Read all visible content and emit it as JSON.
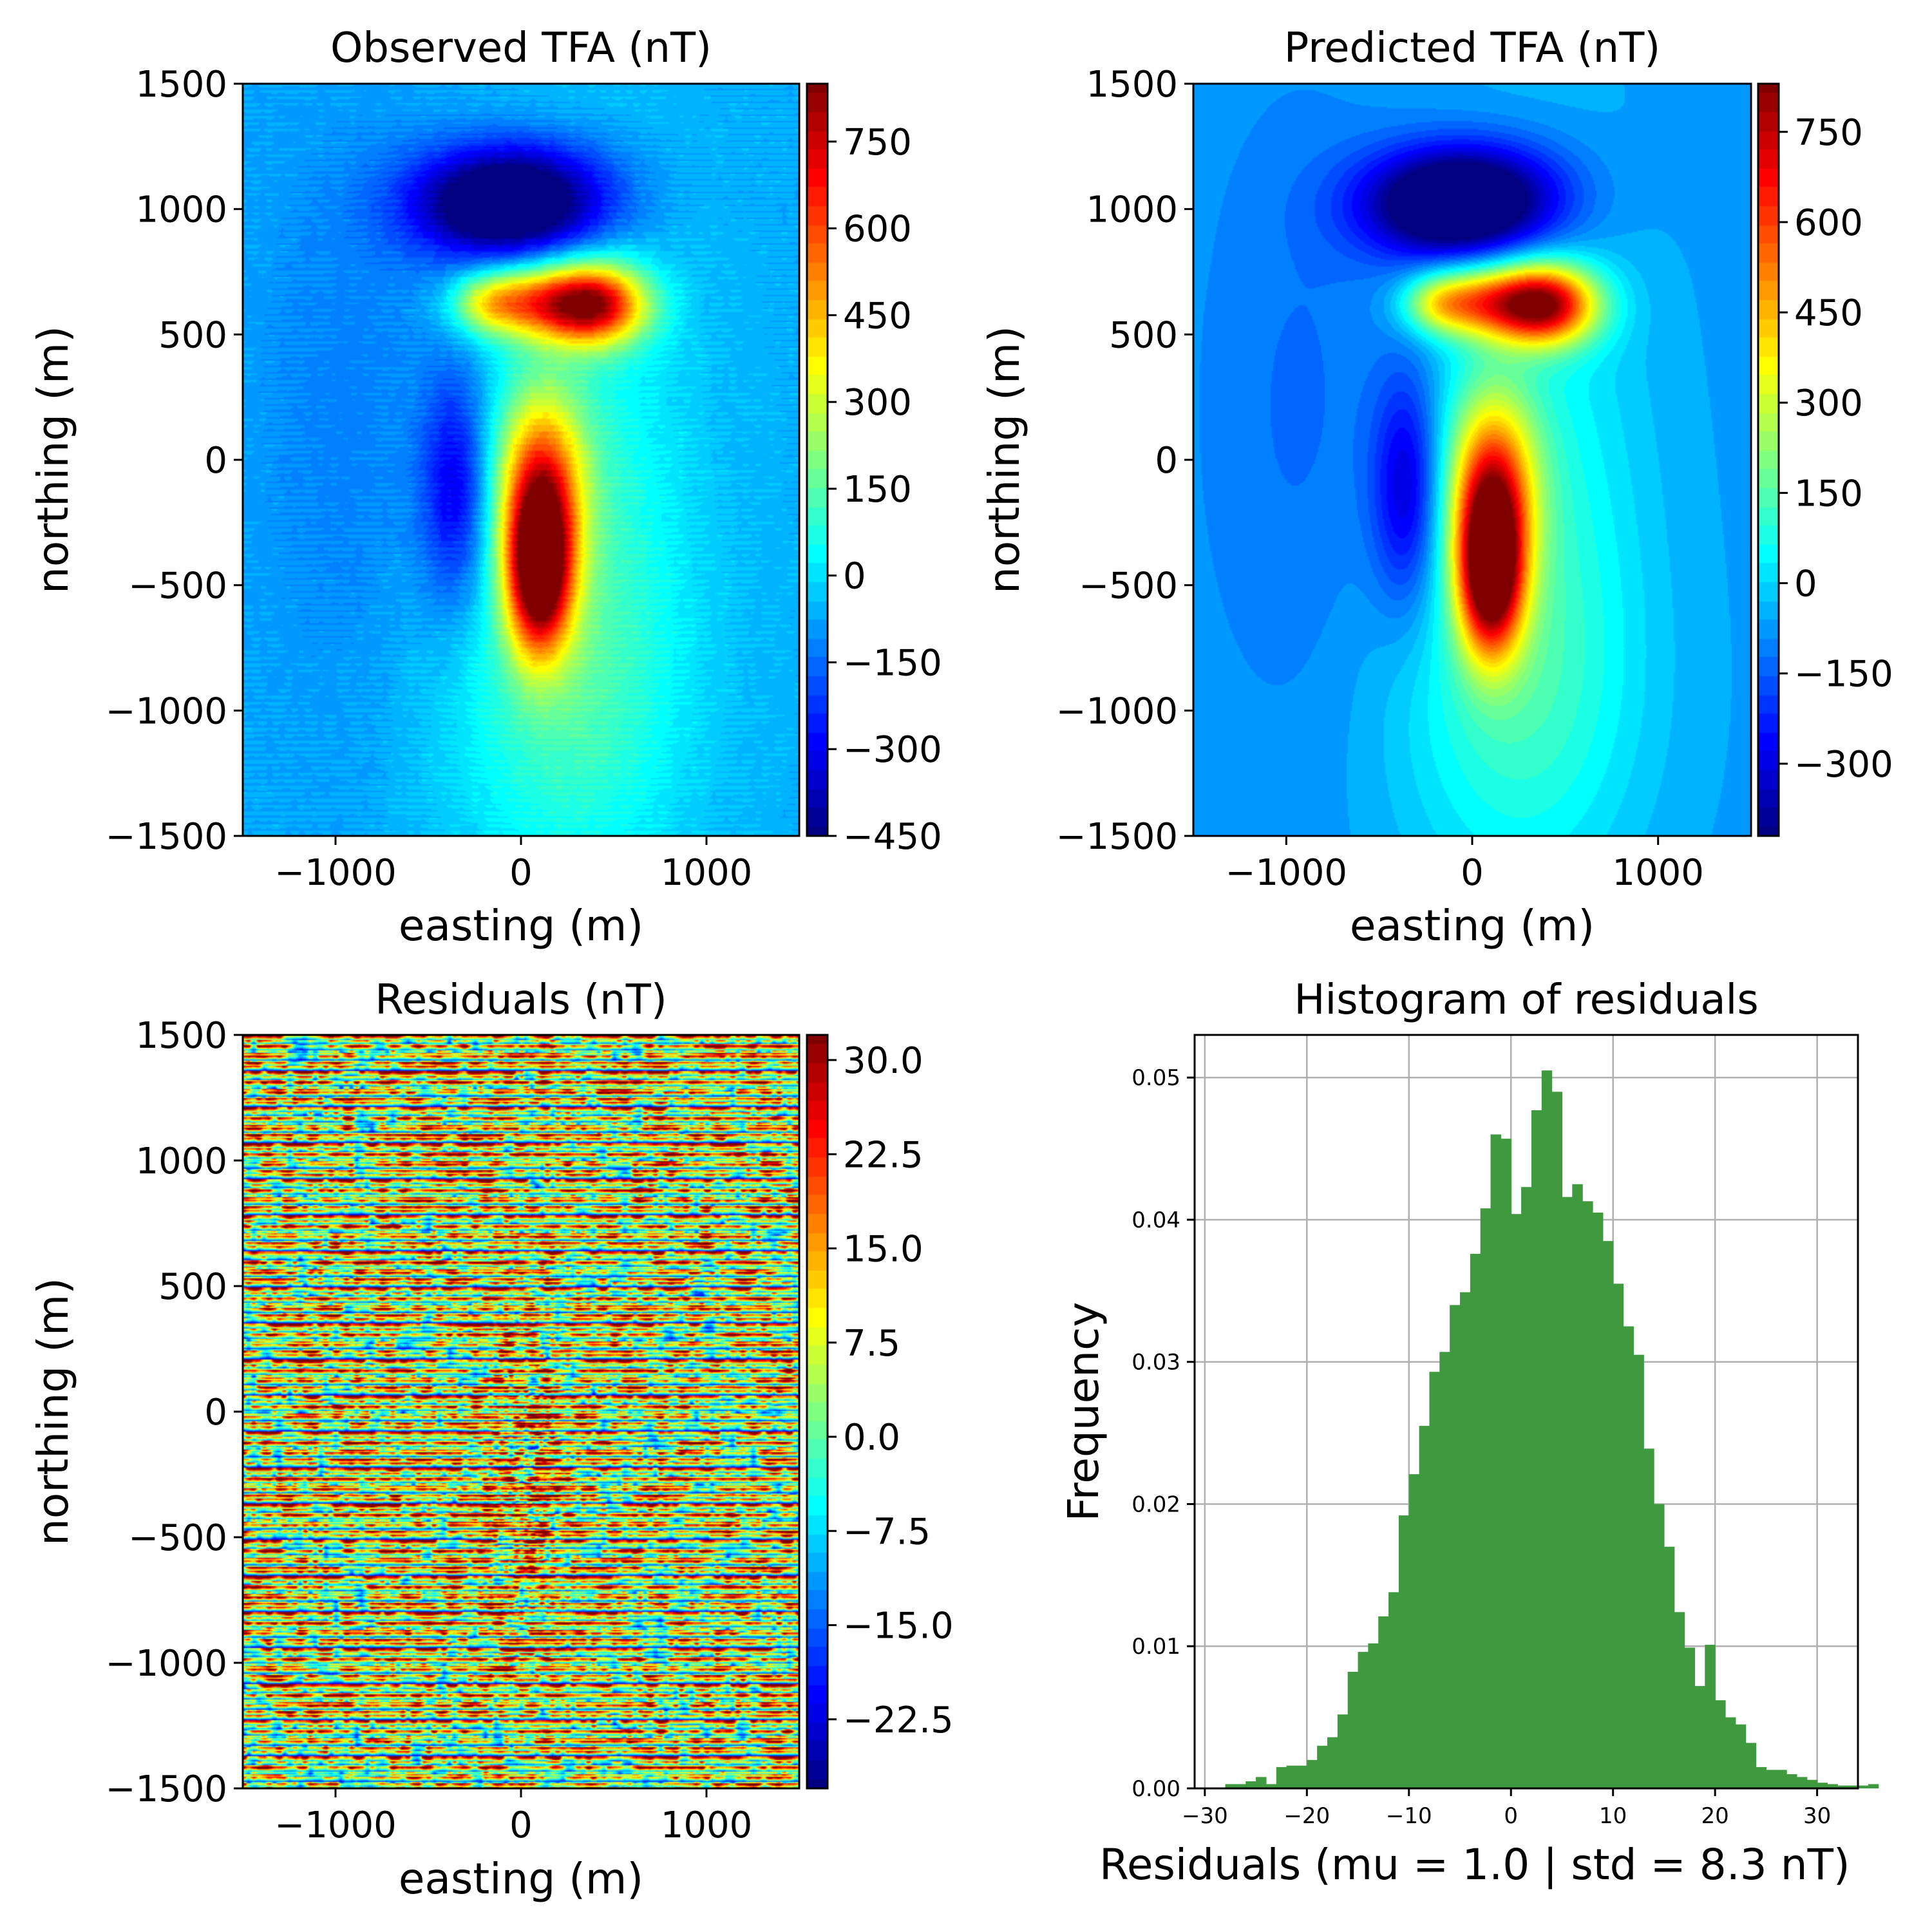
{
  "chart_data": [
    {
      "type": "heatmap",
      "title": "Observed TFA (nT)",
      "xlabel": "easting (m)",
      "ylabel": "northing (m)",
      "xlim": [
        -1500,
        1500
      ],
      "ylim": [
        -1500,
        1500
      ],
      "xticks": [
        -1000,
        0,
        1000
      ],
      "yticks": [
        -1500,
        -1000,
        -500,
        0,
        500,
        1000,
        1500
      ],
      "colormap": "jet",
      "colorbar": {
        "range": [
          -450,
          850
        ],
        "ticks": [
          -450,
          -300,
          -150,
          0,
          150,
          300,
          450,
          600,
          750
        ]
      },
      "anomalies": [
        {
          "x": 100,
          "y": -450,
          "value": 820,
          "shape": "elongated positive lobe"
        },
        {
          "x": 380,
          "y": 620,
          "value": 780,
          "shape": "elongated positive lobe"
        },
        {
          "x": -120,
          "y": 1020,
          "value": -420,
          "shape": "negative lobe"
        },
        {
          "x": -350,
          "y": -120,
          "value": -230,
          "shape": "negative lobe"
        }
      ]
    },
    {
      "type": "heatmap",
      "title": "Predicted TFA (nT)",
      "xlabel": "easting (m)",
      "ylabel": "northing (m)",
      "xlim": [
        -1500,
        1500
      ],
      "ylim": [
        -1500,
        1500
      ],
      "xticks": [
        -1000,
        0,
        1000
      ],
      "yticks": [
        -1500,
        -1000,
        -500,
        0,
        500,
        1000,
        1500
      ],
      "colormap": "jet",
      "colorbar": {
        "range": [
          -420,
          830
        ],
        "ticks": [
          -300,
          -150,
          0,
          150,
          300,
          450,
          600,
          750
        ]
      },
      "anomalies": [
        {
          "x": 100,
          "y": -450,
          "value": 810,
          "shape": "elongated positive lobe"
        },
        {
          "x": 380,
          "y": 620,
          "value": 770,
          "shape": "elongated positive lobe"
        },
        {
          "x": -120,
          "y": 1020,
          "value": -410,
          "shape": "negative lobe"
        },
        {
          "x": -350,
          "y": -120,
          "value": -230,
          "shape": "negative lobe"
        }
      ]
    },
    {
      "type": "heatmap",
      "title": "Residuals (nT)",
      "xlabel": "easting (m)",
      "ylabel": "northing (m)",
      "xlim": [
        -1500,
        1500
      ],
      "ylim": [
        -1500,
        1500
      ],
      "xticks": [
        -1000,
        0,
        1000
      ],
      "yticks": [
        -1500,
        -1000,
        -500,
        0,
        500,
        1000,
        1500
      ],
      "colormap": "jet",
      "colorbar": {
        "range": [
          -28,
          32
        ],
        "ticks": [
          "30.0",
          "22.5",
          "15.0",
          "7.5",
          "0.0",
          "−7.5",
          "−15.0",
          "−22.5"
        ],
        "tick_values": [
          30,
          22.5,
          15,
          7.5,
          0,
          -7.5,
          -15,
          -22.5
        ]
      },
      "pattern": "random noise"
    },
    {
      "type": "bar",
      "title": "Histogram of residuals",
      "xlabel": "Residuals (mu = 1.0 | std = 8.3 nT)",
      "ylabel": "Frequency",
      "xlim": [
        -31,
        34
      ],
      "ylim": [
        0,
        0.053
      ],
      "xticks": [
        -30,
        -20,
        -10,
        0,
        10,
        20,
        30
      ],
      "yticks": [
        "0.00",
        "0.01",
        "0.02",
        "0.03",
        "0.04",
        "0.05"
      ],
      "grid": true,
      "color": "#3f9a3f",
      "bin_start": -28,
      "bin_width": 1,
      "values": [
        0.0003,
        0.0003,
        0.0005,
        0.0008,
        0.0003,
        0.0015,
        0.0016,
        0.0016,
        0.002,
        0.003,
        0.0036,
        0.0052,
        0.0082,
        0.0096,
        0.0102,
        0.0121,
        0.0138,
        0.0192,
        0.0221,
        0.0255,
        0.0293,
        0.0307,
        0.034,
        0.0349,
        0.0376,
        0.0408,
        0.046,
        0.0457,
        0.0404,
        0.0423,
        0.0477,
        0.0505,
        0.049,
        0.0416,
        0.0425,
        0.0413,
        0.0405,
        0.0385,
        0.0355,
        0.0325,
        0.0305,
        0.0239,
        0.02,
        0.017,
        0.0124,
        0.0099,
        0.0072,
        0.0101,
        0.0062,
        0.005,
        0.0045,
        0.0032,
        0.0015,
        0.0013,
        0.0013,
        0.001,
        0.0008,
        0.0006,
        0.0004,
        0.0003,
        0.0002,
        0.0002,
        0.0002,
        0.0003
      ]
    }
  ]
}
